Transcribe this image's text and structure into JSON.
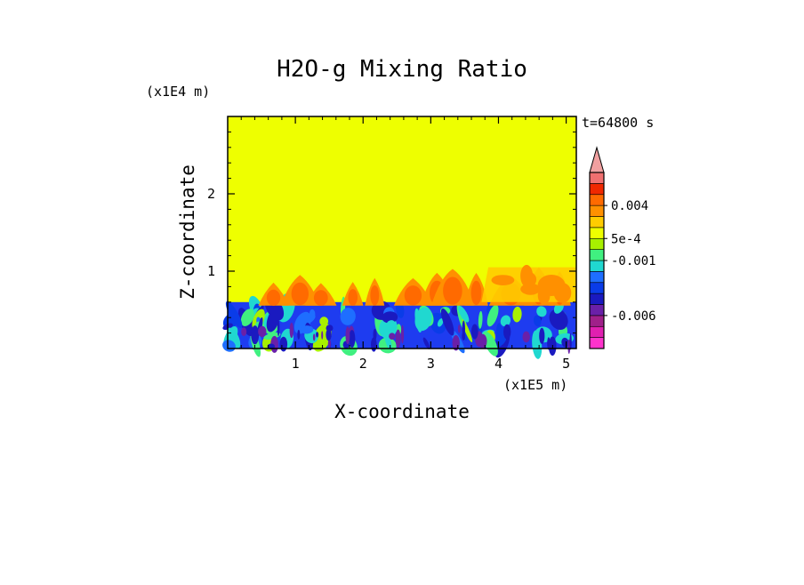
{
  "chart_data": {
    "type": "heatmap",
    "title": "H2O-g Mixing Ratio",
    "xlabel": "X-coordinate",
    "ylabel": "Z-coordinate",
    "x_unit_label": "(x1E5 m)",
    "z_unit_label": "(x1E4 m)",
    "time_label": "t=64800 s",
    "xlim": [
      0,
      5.15
    ],
    "ylim": [
      0,
      3.0
    ],
    "x_ticks": [
      1,
      2,
      3,
      4,
      5
    ],
    "y_ticks": [
      1,
      2
    ],
    "boundary_layer_top": 0.6,
    "mixing_top": 1.05,
    "colorbar": {
      "extend": "max",
      "levels": [
        {
          "color": "#ff33cc"
        },
        {
          "color": "#e020b0"
        },
        {
          "color": "#a0208a"
        },
        {
          "color": "#6a20a8"
        },
        {
          "color": "#1a1ac0"
        },
        {
          "color": "#0a3ce8"
        },
        {
          "color": "#1e6eff"
        },
        {
          "color": "#20d8d0"
        },
        {
          "color": "#40f080"
        },
        {
          "color": "#a8f000"
        },
        {
          "color": "#eeff00"
        },
        {
          "color": "#ffcc00"
        },
        {
          "color": "#ff9000"
        },
        {
          "color": "#ff6a00"
        },
        {
          "color": "#f02800"
        },
        {
          "color": "#f07070"
        }
      ],
      "extension_color": "#f0a0a0",
      "tick_labels": [
        {
          "text": "0.004",
          "at": 13
        },
        {
          "text": "5e-4",
          "at": 10
        },
        {
          "text": "-0.001",
          "at": 8
        },
        {
          "text": "-0.006",
          "at": 3
        }
      ]
    },
    "colors": {
      "background_field": "#eeff00",
      "boundary_layer": "#1e3cf0",
      "plume": "#ff9000",
      "plume_core": "#ff6a00"
    }
  }
}
